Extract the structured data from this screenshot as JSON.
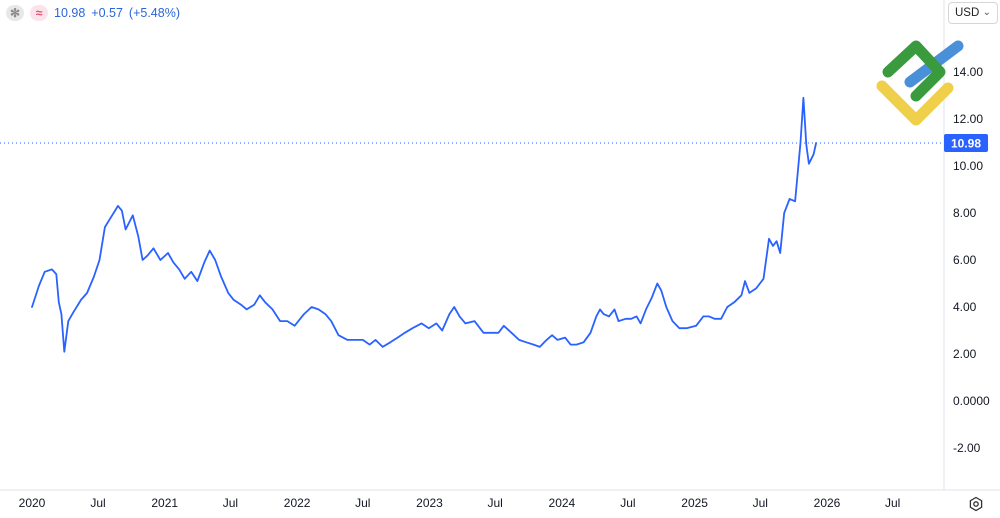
{
  "header": {
    "icon_1": "asterisk-icon",
    "icon_2": "approx-icon",
    "price": "10.98",
    "change": "+0.57",
    "change_pct": "(+5.48%)"
  },
  "currency_select": {
    "value": "USD"
  },
  "last_price_label": "10.98",
  "colors": {
    "line": "#2962ff",
    "price_tag": "#2962ff",
    "axis_text": "#131722",
    "logo_green": "#3a9a3e",
    "logo_yellow": "#f0cf4a",
    "logo_blue": "#4a90d9"
  },
  "chart_data": {
    "type": "line",
    "x_axis_labels": [
      "2020",
      "Jul",
      "2021",
      "Jul",
      "2022",
      "Jul",
      "2023",
      "Jul",
      "2024",
      "Jul",
      "2025",
      "Jul",
      "2026",
      "Jul"
    ],
    "y_axis_labels": [
      "14.00",
      "12.00",
      "10.00",
      "8.00",
      "6.00",
      "4.00",
      "2.00",
      "0.0000",
      "-2.00"
    ],
    "ylim": [
      -3.0,
      15.5
    ],
    "last_value": 10.98,
    "grid": false,
    "series": [
      {
        "points": [
          [
            "2020-01-01",
            4.0
          ],
          [
            "2020-01-20",
            4.9
          ],
          [
            "2020-02-05",
            5.5
          ],
          [
            "2020-02-25",
            5.6
          ],
          [
            "2020-03-08",
            5.4
          ],
          [
            "2020-03-15",
            4.2
          ],
          [
            "2020-03-22",
            3.7
          ],
          [
            "2020-03-30",
            2.1
          ],
          [
            "2020-04-10",
            3.4
          ],
          [
            "2020-04-25",
            3.8
          ],
          [
            "2020-05-15",
            4.3
          ],
          [
            "2020-06-01",
            4.6
          ],
          [
            "2020-06-20",
            5.3
          ],
          [
            "2020-07-05",
            6.0
          ],
          [
            "2020-07-20",
            7.4
          ],
          [
            "2020-08-05",
            7.8
          ],
          [
            "2020-08-25",
            8.3
          ],
          [
            "2020-09-05",
            8.1
          ],
          [
            "2020-09-15",
            7.3
          ],
          [
            "2020-09-25",
            7.6
          ],
          [
            "2020-10-05",
            7.9
          ],
          [
            "2020-10-20",
            7.0
          ],
          [
            "2020-11-01",
            6.0
          ],
          [
            "2020-11-15",
            6.2
          ],
          [
            "2020-12-01",
            6.5
          ],
          [
            "2020-12-20",
            6.0
          ],
          [
            "2021-01-10",
            6.3
          ],
          [
            "2021-01-25",
            5.9
          ],
          [
            "2021-02-10",
            5.6
          ],
          [
            "2021-02-25",
            5.2
          ],
          [
            "2021-03-15",
            5.5
          ],
          [
            "2021-04-01",
            5.1
          ],
          [
            "2021-04-20",
            5.9
          ],
          [
            "2021-05-05",
            6.4
          ],
          [
            "2021-05-20",
            6.0
          ],
          [
            "2021-06-05",
            5.3
          ],
          [
            "2021-06-25",
            4.6
          ],
          [
            "2021-07-10",
            4.3
          ],
          [
            "2021-07-30",
            4.1
          ],
          [
            "2021-08-15",
            3.9
          ],
          [
            "2021-09-05",
            4.1
          ],
          [
            "2021-09-20",
            4.5
          ],
          [
            "2021-10-05",
            4.2
          ],
          [
            "2021-10-25",
            3.9
          ],
          [
            "2021-11-15",
            3.4
          ],
          [
            "2021-12-05",
            3.4
          ],
          [
            "2021-12-25",
            3.2
          ],
          [
            "2022-01-20",
            3.7
          ],
          [
            "2022-02-10",
            4.0
          ],
          [
            "2022-03-01",
            3.9
          ],
          [
            "2022-03-20",
            3.7
          ],
          [
            "2022-04-05",
            3.4
          ],
          [
            "2022-04-25",
            2.8
          ],
          [
            "2022-05-20",
            2.6
          ],
          [
            "2022-06-10",
            2.6
          ],
          [
            "2022-07-01",
            2.6
          ],
          [
            "2022-07-20",
            2.4
          ],
          [
            "2022-08-05",
            2.6
          ],
          [
            "2022-08-25",
            2.3
          ],
          [
            "2022-09-15",
            2.5
          ],
          [
            "2022-10-05",
            2.7
          ],
          [
            "2022-10-25",
            2.9
          ],
          [
            "2022-11-15",
            3.1
          ],
          [
            "2022-12-10",
            3.3
          ],
          [
            "2022-12-30",
            3.1
          ],
          [
            "2023-01-20",
            3.3
          ],
          [
            "2023-02-05",
            3.0
          ],
          [
            "2023-02-25",
            3.7
          ],
          [
            "2023-03-10",
            4.0
          ],
          [
            "2023-03-25",
            3.6
          ],
          [
            "2023-04-10",
            3.3
          ],
          [
            "2023-05-05",
            3.4
          ],
          [
            "2023-05-30",
            2.9
          ],
          [
            "2023-06-20",
            2.9
          ],
          [
            "2023-07-10",
            2.9
          ],
          [
            "2023-07-25",
            3.2
          ],
          [
            "2023-08-15",
            2.9
          ],
          [
            "2023-09-05",
            2.6
          ],
          [
            "2023-09-25",
            2.5
          ],
          [
            "2023-10-15",
            2.4
          ],
          [
            "2023-11-01",
            2.3
          ],
          [
            "2023-11-20",
            2.6
          ],
          [
            "2023-12-05",
            2.8
          ],
          [
            "2023-12-20",
            2.6
          ],
          [
            "2024-01-10",
            2.7
          ],
          [
            "2024-01-25",
            2.4
          ],
          [
            "2024-02-10",
            2.4
          ],
          [
            "2024-03-01",
            2.5
          ],
          [
            "2024-03-20",
            2.9
          ],
          [
            "2024-04-05",
            3.6
          ],
          [
            "2024-04-15",
            3.9
          ],
          [
            "2024-04-25",
            3.7
          ],
          [
            "2024-05-10",
            3.6
          ],
          [
            "2024-05-25",
            3.9
          ],
          [
            "2024-06-05",
            3.4
          ],
          [
            "2024-06-25",
            3.5
          ],
          [
            "2024-07-10",
            3.5
          ],
          [
            "2024-07-25",
            3.6
          ],
          [
            "2024-08-05",
            3.3
          ],
          [
            "2024-08-20",
            3.9
          ],
          [
            "2024-09-05",
            4.4
          ],
          [
            "2024-09-20",
            5.0
          ],
          [
            "2024-10-01",
            4.7
          ],
          [
            "2024-10-15",
            4.0
          ],
          [
            "2024-11-01",
            3.4
          ],
          [
            "2024-11-20",
            3.1
          ],
          [
            "2024-12-10",
            3.1
          ],
          [
            "2025-01-05",
            3.2
          ],
          [
            "2025-01-25",
            3.6
          ],
          [
            "2025-02-10",
            3.6
          ],
          [
            "2025-02-25",
            3.5
          ],
          [
            "2025-03-15",
            3.5
          ],
          [
            "2025-04-01",
            4.0
          ],
          [
            "2025-04-20",
            4.2
          ],
          [
            "2025-05-10",
            4.5
          ],
          [
            "2025-05-20",
            5.1
          ],
          [
            "2025-06-01",
            4.6
          ],
          [
            "2025-06-20",
            4.8
          ],
          [
            "2025-07-10",
            5.2
          ],
          [
            "2025-07-25",
            6.9
          ],
          [
            "2025-08-05",
            6.6
          ],
          [
            "2025-08-15",
            6.8
          ],
          [
            "2025-08-25",
            6.3
          ],
          [
            "2025-09-05",
            8.0
          ],
          [
            "2025-09-20",
            8.6
          ],
          [
            "2025-10-05",
            8.5
          ],
          [
            "2025-10-20",
            11.0
          ],
          [
            "2025-10-28",
            12.9
          ],
          [
            "2025-11-05",
            10.9
          ],
          [
            "2025-11-12",
            10.1
          ],
          [
            "2025-11-25",
            10.5
          ],
          [
            "2025-12-02",
            10.98
          ]
        ]
      }
    ]
  }
}
